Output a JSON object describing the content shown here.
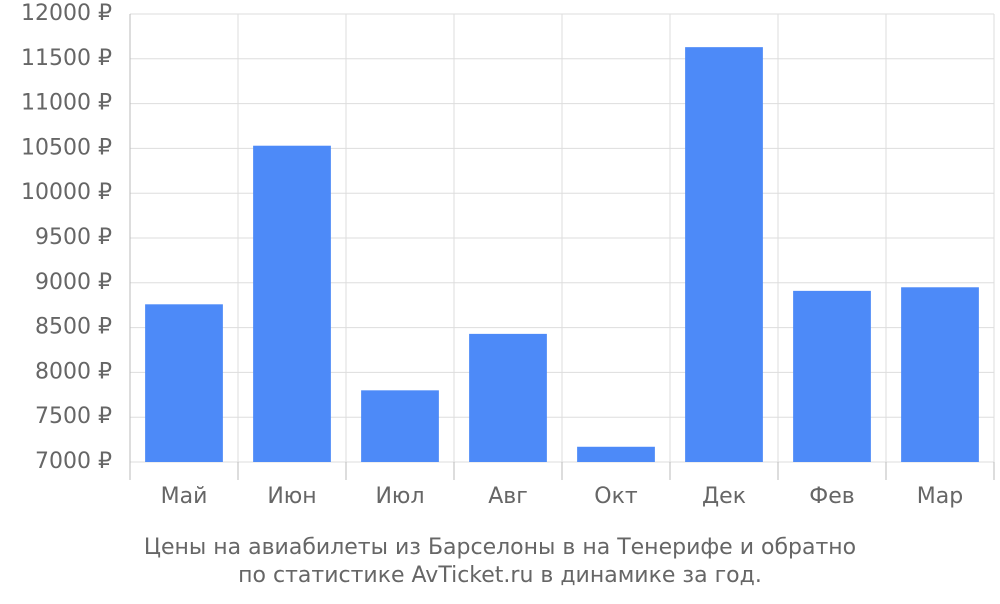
{
  "chart_data": {
    "type": "bar",
    "caption": [
      "Цены на авиабилеты из Барселоны в на Тенерифе и обратно",
      "по статистике AvTicket.ru в динамике за год."
    ],
    "categories": [
      "Май",
      "Июн",
      "Июл",
      "Авг",
      "Окт",
      "Дек",
      "Фев",
      "Мар"
    ],
    "values": [
      8760,
      10530,
      7800,
      8430,
      7170,
      11630,
      8910,
      8950
    ],
    "color": "#4d8af8",
    "ylim": [
      7000,
      12000
    ],
    "yticks": [
      {
        "value": 7000,
        "label": "7000 ₽"
      },
      {
        "value": 7500,
        "label": "7500 ₽"
      },
      {
        "value": 8000,
        "label": "8000 ₽"
      },
      {
        "value": 8500,
        "label": "8500 ₽"
      },
      {
        "value": 9000,
        "label": "9000 ₽"
      },
      {
        "value": 9500,
        "label": "9500 ₽"
      },
      {
        "value": 10000,
        "label": "10000 ₽"
      },
      {
        "value": 10500,
        "label": "10500 ₽"
      },
      {
        "value": 11000,
        "label": "11000 ₽"
      },
      {
        "value": 11500,
        "label": "11500 ₽"
      },
      {
        "value": 12000,
        "label": "12000 ₽"
      }
    ],
    "grid": true
  }
}
